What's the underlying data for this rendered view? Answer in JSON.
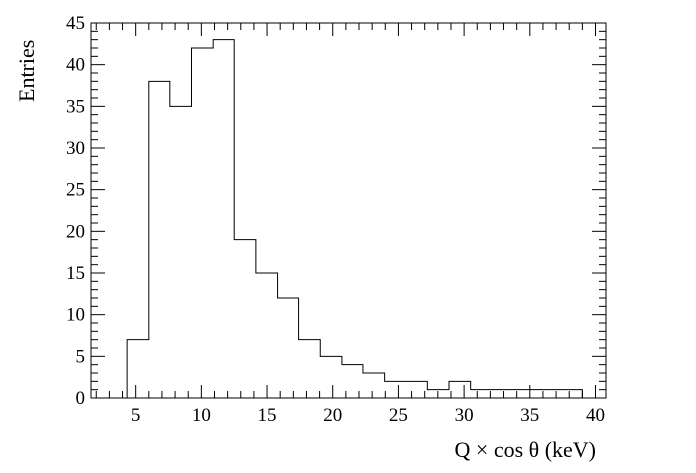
{
  "chart_data": {
    "type": "bar",
    "style": "step-histogram",
    "title": "",
    "xlabel": "Q × cos θ (keV)",
    "ylabel": "Entries",
    "xlim": [
      1.6,
      40.8
    ],
    "ylim": [
      0,
      45
    ],
    "x_ticks": [
      5,
      10,
      15,
      20,
      25,
      30,
      35,
      40
    ],
    "y_ticks": [
      0,
      5,
      10,
      15,
      20,
      25,
      30,
      35,
      40,
      45
    ],
    "grid": false,
    "legend": "none",
    "line_color": "#000000",
    "bin_edges": [
      4.35,
      6.0,
      7.6,
      9.25,
      10.9,
      12.5,
      14.15,
      15.8,
      17.4,
      19.05,
      20.7,
      22.3,
      23.95,
      25.6,
      27.2,
      28.85,
      30.5,
      39.0
    ],
    "values": [
      7,
      38,
      35,
      42,
      43,
      19,
      15,
      12,
      7,
      5,
      4,
      3,
      2,
      2,
      1,
      2,
      1
    ]
  }
}
